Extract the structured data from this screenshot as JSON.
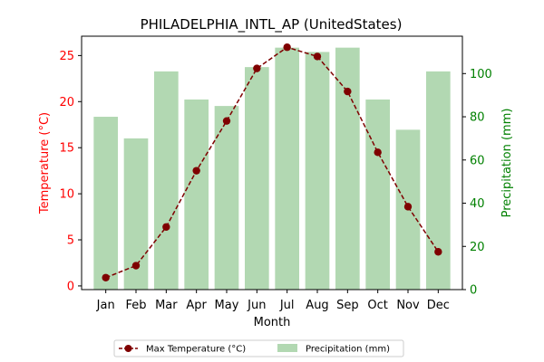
{
  "chart_data": {
    "type": "bar+line",
    "title": "PHILADELPHIA_INTL_AP (UnitedStates)",
    "xlabel": "Month",
    "categories": [
      "Jan",
      "Feb",
      "Mar",
      "Apr",
      "May",
      "Jun",
      "Jul",
      "Aug",
      "Sep",
      "Oct",
      "Nov",
      "Dec"
    ],
    "left_axis": {
      "label": "Temperature (°C)",
      "range": [
        -0.4,
        27.1
      ],
      "ticks": [
        0,
        5,
        10,
        15,
        20,
        25
      ],
      "color": "#ff0000"
    },
    "right_axis": {
      "label": "Precipitation (mm)",
      "range": [
        0,
        117.3
      ],
      "ticks": [
        0,
        20,
        40,
        60,
        80,
        100
      ],
      "color": "#008000"
    },
    "series": [
      {
        "name": "Max Temperature (°C)",
        "kind": "line",
        "axis": "left",
        "color": "#7f0000",
        "values": [
          0.9,
          2.2,
          6.4,
          12.5,
          17.9,
          23.6,
          25.9,
          24.9,
          21.1,
          14.5,
          8.6,
          3.7
        ]
      },
      {
        "name": "Precipitation (mm)",
        "kind": "bar",
        "axis": "right",
        "color": "#b2d8b2",
        "values": [
          80,
          70,
          101,
          88,
          85,
          103,
          112,
          110,
          112,
          88,
          74,
          101
        ]
      }
    ],
    "legend_position": "bottom-center"
  }
}
